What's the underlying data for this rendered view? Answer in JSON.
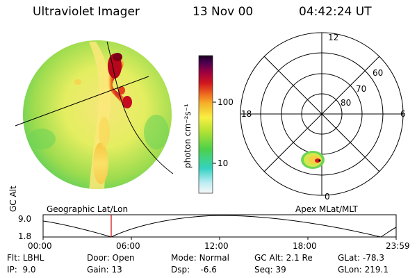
{
  "header": {
    "title": "Ultraviolet Imager",
    "date": "13 Nov 00",
    "time": "04:42:24 UT"
  },
  "colorbar": {
    "unit_label": "photon cm⁻²s⁻¹",
    "ticks": [
      "100",
      "10"
    ]
  },
  "polar_plot": {
    "mlt_labels": [
      "12",
      "18",
      "6",
      "0"
    ],
    "mlat_labels": [
      "60",
      "70",
      "80"
    ]
  },
  "panel_labels": {
    "left": "Geographic Lat/Lon",
    "right": "Apex MLat/MLT"
  },
  "timeline": {
    "axis_label": "GC Alt",
    "y_ticks": [
      "9.0",
      "1.8"
    ],
    "x_ticks": [
      "00:00",
      "06:00",
      "12:00",
      "18:00",
      "23:59"
    ],
    "marker_color": "#d00000"
  },
  "status": {
    "row1": [
      {
        "label": "Flt:",
        "value": "LBHL"
      },
      {
        "label": "Door:",
        "value": "Open"
      },
      {
        "label": "Mode:",
        "value": "Normal"
      },
      {
        "label": "GC Alt:",
        "value": "2.1 Re"
      },
      {
        "label": "GLat:",
        "value": "-78.3"
      }
    ],
    "row2": [
      {
        "label": "IP:",
        "value": "9.0"
      },
      {
        "label": "Gain:",
        "value": "13"
      },
      {
        "label": "Dsp:",
        "value": "-6.6"
      },
      {
        "label": "Seq:",
        "value": "39"
      },
      {
        "label": "GLon:",
        "value": "219.1"
      }
    ]
  }
}
